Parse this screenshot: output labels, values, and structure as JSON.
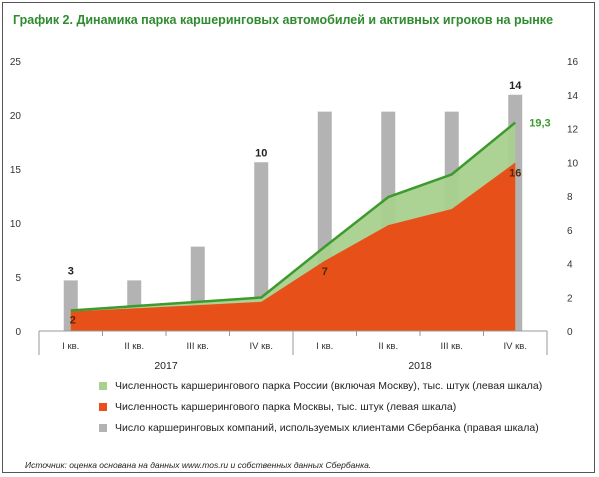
{
  "title": "График 2. Динамика парка каршеринговых автомобилей и активных игроков на рынке",
  "source": "Источник: оценка основана на данных www.mos.ru и собственных данных Сбербанка.",
  "colors": {
    "russia_fill": "#a9d18e",
    "russia_line": "#3d9a2e",
    "moscow_fill": "#e8501a",
    "companies_bar": "#b3b3b3",
    "title": "#2e8b2e"
  },
  "chart_data": {
    "type": "bar+area",
    "categories": [
      "I кв.",
      "II кв.",
      "III кв.",
      "IV кв.",
      "I кв.",
      "II кв.",
      "III кв.",
      "IV кв."
    ],
    "groups": [
      {
        "label": "2017",
        "from": 0,
        "to": 3
      },
      {
        "label": "2018",
        "from": 4,
        "to": 7
      }
    ],
    "left_axis": {
      "min": 0,
      "max": 25,
      "ticks": [
        "0",
        "5",
        "10",
        "15",
        "20",
        "25"
      ]
    },
    "right_axis": {
      "min": 0,
      "max": 16,
      "ticks": [
        "0",
        "2",
        "4",
        "6",
        "8",
        "10",
        "12",
        "14",
        "16"
      ]
    },
    "series": [
      {
        "name": "Численность каршерингового парка России (включая Москву), тыс. штук (левая шкала)",
        "kind": "area-line",
        "axis": "left",
        "values": [
          1.9,
          2.3,
          2.7,
          3.1,
          7.8,
          12.4,
          14.5,
          19.3
        ]
      },
      {
        "name": "Численность каршерингового парка Москвы, тыс. штук (левая шкала)",
        "kind": "area",
        "axis": "left",
        "values": [
          1.8,
          2.1,
          2.4,
          2.7,
          6.5,
          9.8,
          11.3,
          15.6
        ]
      },
      {
        "name": "Число каршеринговых компаний, используемых клиентами Сбербанка (правая шкала)",
        "kind": "bar",
        "axis": "right",
        "values": [
          3,
          3,
          5,
          10,
          13,
          13,
          13,
          14
        ]
      }
    ],
    "data_labels": [
      {
        "text": "3",
        "series": 2,
        "index": 0
      },
      {
        "text": "10",
        "series": 2,
        "index": 3
      },
      {
        "text": "14",
        "series": 2,
        "index": 7
      },
      {
        "text": "19,3",
        "series": 0,
        "index": 7
      },
      {
        "text": "2",
        "series": 1,
        "index": 0
      },
      {
        "text": "7",
        "series": 1,
        "index": 4
      },
      {
        "text": "16",
        "series": 1,
        "index": 7
      }
    ],
    "legend_position": "bottom",
    "grid": false
  }
}
